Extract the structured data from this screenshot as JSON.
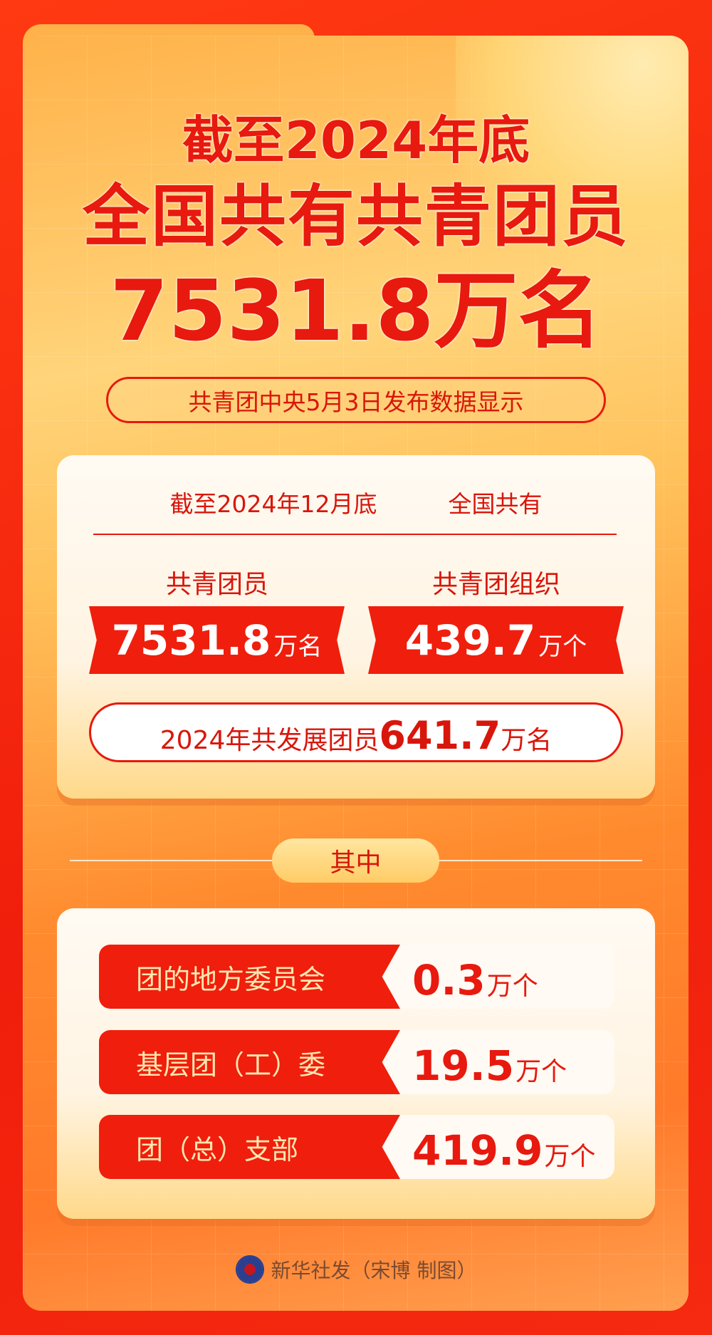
{
  "headline": {
    "line1": "截至2024年底",
    "line2": "全国共有共青团员",
    "line3": "7531.8万名"
  },
  "source_note": "共青团中央5月3日发布数据显示",
  "summary": {
    "date_label": "截至2024年12月底",
    "scope_label": "全国共有",
    "members": {
      "label": "共青团员",
      "value": "7531.8",
      "unit": "万名"
    },
    "organizations": {
      "label": "共青团组织",
      "value": "439.7",
      "unit": "万个"
    },
    "new_members": {
      "label": "2024年共发展团员",
      "value": "641.7",
      "unit": "万名"
    }
  },
  "breakdown_title": "其中",
  "breakdown": [
    {
      "label": "团的地方委员会",
      "value": "0.3",
      "unit": "万个"
    },
    {
      "label": "基层团（工）委",
      "value": "19.5",
      "unit": "万个"
    },
    {
      "label": "团（总）支部",
      "value": "419.9",
      "unit": "万个"
    }
  ],
  "footer": {
    "logo": "xinhua-logo",
    "text": "新华社发（宋博 制图）"
  },
  "colors": {
    "red": "#e8190e",
    "orange": "#ff8a2e",
    "cream": "#fffaf3"
  }
}
